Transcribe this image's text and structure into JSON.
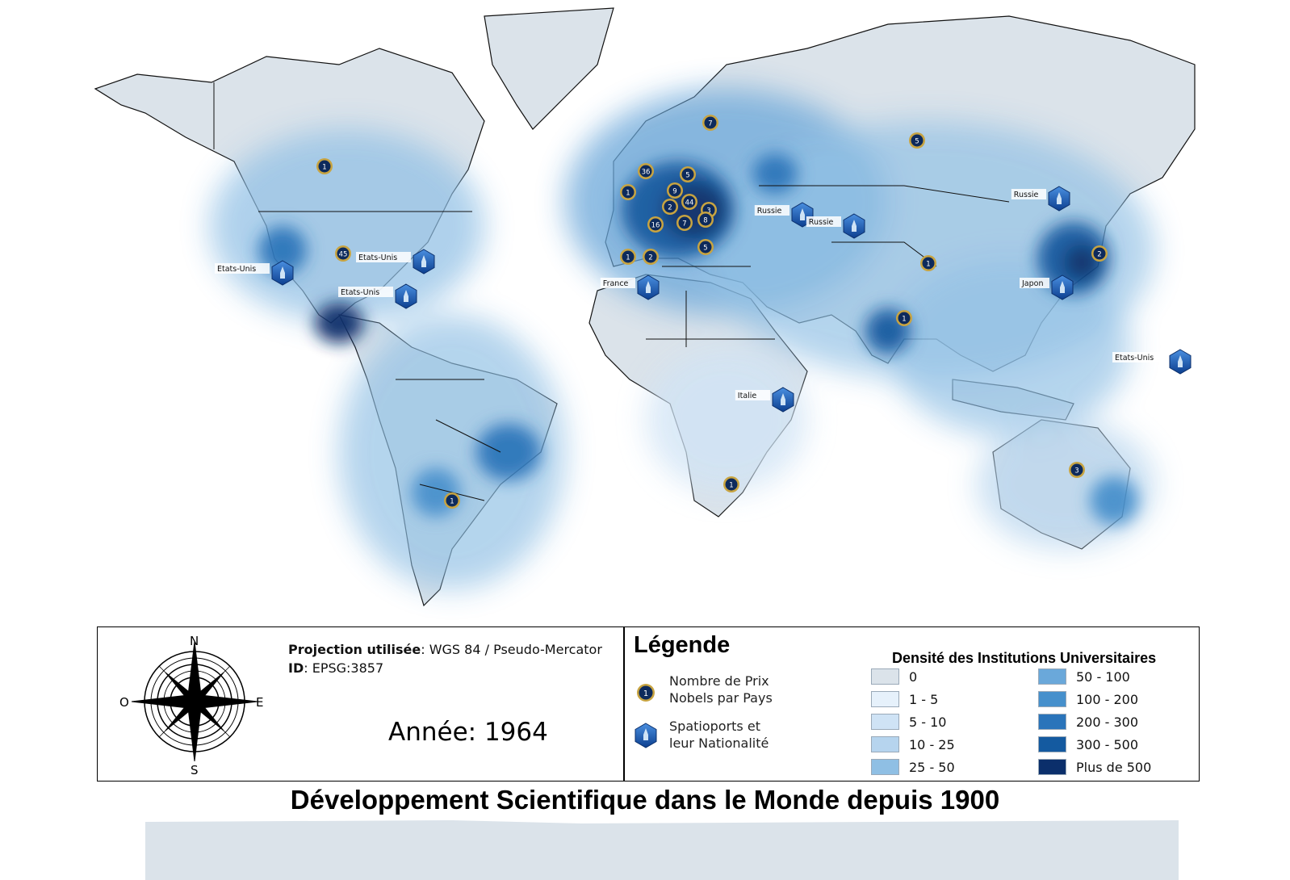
{
  "title": "Développement Scientifique dans le Monde depuis 1900",
  "projection": {
    "label": "Projection utilisée",
    "value": ": WGS 84 / Pseudo-Mercator",
    "id_label": "ID",
    "id_value": ": EPSG:3857"
  },
  "year_text": "Année: 1964",
  "compass": {
    "north": "N",
    "south": "S",
    "east": "E",
    "west": "O"
  },
  "legend": {
    "title": "Légende",
    "nobel_label_line1": "Nombre de Prix",
    "nobel_label_line2": "Nobels par Pays",
    "spaceport_label_line1": "Spatioports et",
    "spaceport_label_line2": "leur Nationalité",
    "density_title": "Densité des Institutions Universitaires",
    "density_classes": [
      {
        "label": "0",
        "color": "#dbe3ea"
      },
      {
        "label": "1 - 5",
        "color": "#e6f1fb"
      },
      {
        "label": "5 - 10",
        "color": "#cfe3f5"
      },
      {
        "label": "10 - 25",
        "color": "#b6d4ee"
      },
      {
        "label": "25 - 50",
        "color": "#8fbfe4"
      },
      {
        "label": "50 - 100",
        "color": "#6aa8da"
      },
      {
        "label": "100 - 200",
        "color": "#4690cc"
      },
      {
        "label": "200 - 300",
        "color": "#2a74ba"
      },
      {
        "label": "300 - 500",
        "color": "#145aa0"
      },
      {
        "label": "Plus de 500",
        "color": "#0b2f6b"
      }
    ]
  },
  "nobel_markers": [
    {
      "value": "1"
    },
    {
      "value": "45"
    },
    {
      "value": "1"
    },
    {
      "value": "7"
    },
    {
      "value": "5"
    },
    {
      "value": "36"
    },
    {
      "value": "5"
    },
    {
      "value": "1"
    },
    {
      "value": "9"
    },
    {
      "value": "2"
    },
    {
      "value": "44"
    },
    {
      "value": "3"
    },
    {
      "value": "16"
    },
    {
      "value": "7"
    },
    {
      "value": "8"
    },
    {
      "value": "5"
    },
    {
      "value": "1"
    },
    {
      "value": "2"
    },
    {
      "value": "1"
    },
    {
      "value": "1"
    },
    {
      "value": "2"
    },
    {
      "value": "1"
    },
    {
      "value": "3"
    }
  ],
  "spaceports": [
    {
      "nation": "Etats-Unis"
    },
    {
      "nation": "Etats-Unis"
    },
    {
      "nation": "Etats-Unis"
    },
    {
      "nation": "France"
    },
    {
      "nation": "Russie"
    },
    {
      "nation": "Russie"
    },
    {
      "nation": "Russie"
    },
    {
      "nation": "Japon"
    },
    {
      "nation": "Italie"
    },
    {
      "nation": "Etats-Unis"
    }
  ],
  "colors": {
    "land": "#dbe3ea",
    "ocean": "#ffffff",
    "marker_fill": "#0d2a5c",
    "marker_ring": "#c8a441",
    "spaceport_fill": "#1a5fb4"
  }
}
